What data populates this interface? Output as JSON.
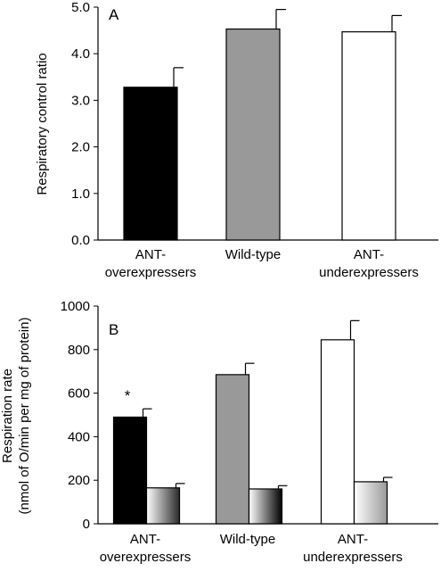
{
  "chart_data": [
    {
      "type": "bar",
      "panel_label": "A",
      "title": "",
      "xlabel": "",
      "ylabel": "Respiratory control ratio",
      "ylim": [
        0,
        5
      ],
      "yticks": [
        "0.0",
        "1.0",
        "2.0",
        "3.0",
        "4.0",
        "5.0"
      ],
      "categories": [
        [
          "ANT-",
          "overexpressers"
        ],
        [
          "Wild-type"
        ],
        [
          "ANT-",
          "underexpressers"
        ]
      ],
      "series": [
        {
          "values": [
            3.28,
            4.53,
            4.47
          ],
          "errors": [
            0.42,
            0.42,
            0.35
          ],
          "colors": [
            "#000000",
            "#999999",
            "#ffffff"
          ]
        }
      ],
      "grid": false,
      "legend": "none"
    },
    {
      "type": "bar",
      "panel_label": "B",
      "title": "",
      "xlabel": "",
      "ylabel": [
        "Respiration rate",
        "(nmol of O/min per mg of protein)"
      ],
      "ylim": [
        0,
        1000
      ],
      "yticks": [
        "0",
        "200",
        "400",
        "600",
        "800",
        "1000"
      ],
      "categories": [
        [
          "ANT-",
          "overexpressers"
        ],
        [
          "Wild-type"
        ],
        [
          "ANT-",
          "underexpressers"
        ]
      ],
      "series": [
        {
          "values": [
            490,
            685,
            845
          ],
          "errors": [
            38,
            52,
            88
          ],
          "colors": [
            "#000000",
            "#999999",
            "#ffffff"
          ],
          "annotations": [
            "*",
            "",
            ""
          ]
        },
        {
          "values": [
            165,
            160,
            193
          ],
          "errors": [
            20,
            15,
            20
          ],
          "fill": "gradient white-to-black",
          "gradient_stops": [
            [
              "#ffffff",
              "#2a2a2a"
            ],
            [
              "#ffffff",
              "#000000"
            ],
            [
              "#ffffff",
              "#9a9a9a"
            ]
          ]
        }
      ],
      "grid": false,
      "legend": "none"
    }
  ]
}
